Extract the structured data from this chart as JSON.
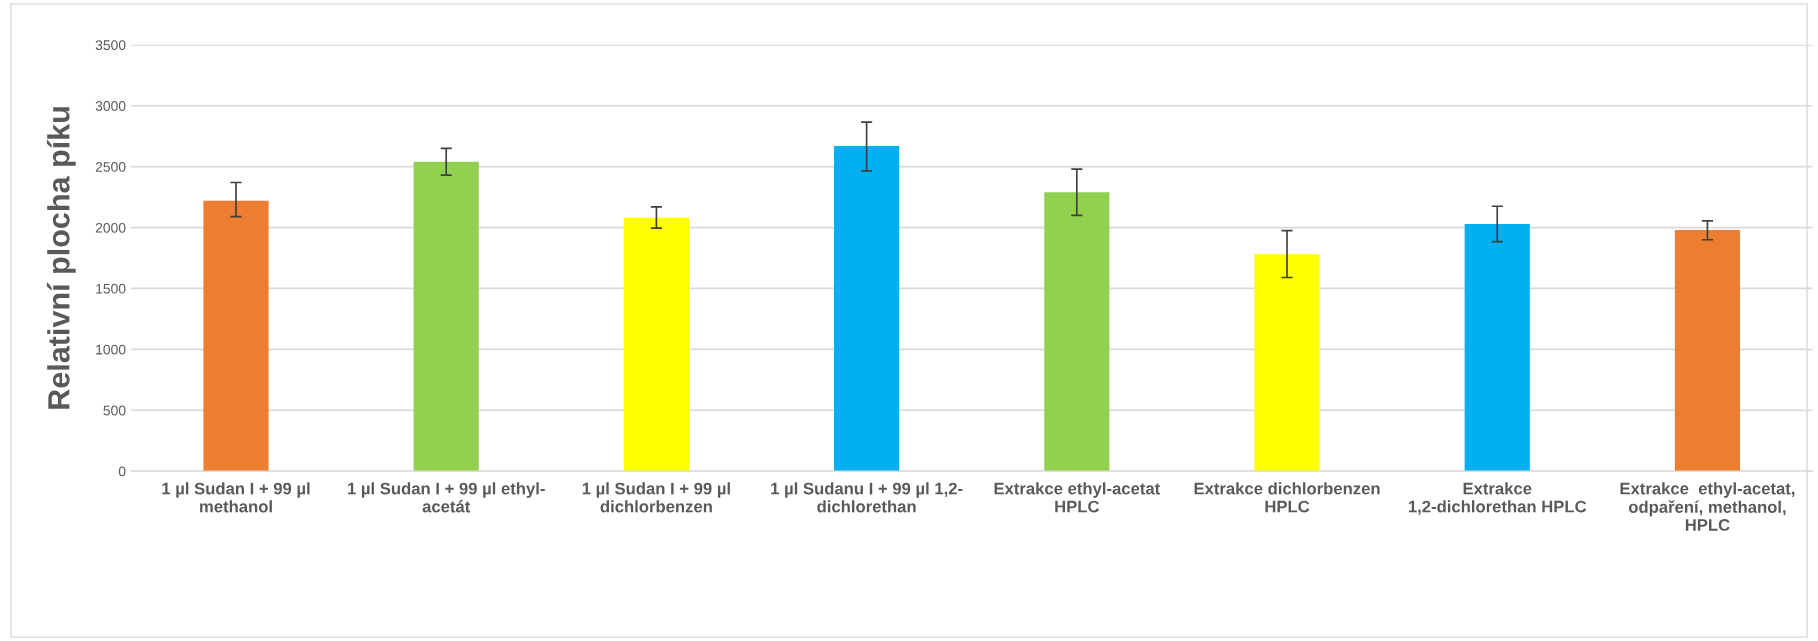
{
  "chart_data": {
    "type": "bar",
    "ylabel": "Relativní plocha píku",
    "categories": [
      "1 µl Sudan I + 99 µl\nmethanol",
      "1 µl Sudan I + 99 µl ethyl-\nacetát",
      "1 µl Sudan I + 99 µl\ndichlorbenzen",
      "1 µl Sudanu I + 99 µl 1,2-\ndichlorethan",
      "Extrakce ethyl-acetat\nHPLC",
      "Extrakce dichlorbenzen\nHPLC",
      "Extrakce\n1,2-dichlorethan HPLC",
      "Extrakce  ethyl-acetat,\nodpaření, methanol,\nHPLC"
    ],
    "values": [
      2220,
      2540,
      2080,
      2670,
      2290,
      1780,
      2030,
      1980
    ],
    "colors": [
      "#ed7d31",
      "#92d050",
      "#ffff00",
      "#00b0f0",
      "#92d050",
      "#ffff00",
      "#00b0f0",
      "#ed7d31"
    ],
    "errors": [
      [
        2090,
        2370
      ],
      [
        2430,
        2650
      ],
      [
        1995,
        2170
      ],
      [
        2465,
        2865
      ],
      [
        2100,
        2480
      ],
      [
        1590,
        1975
      ],
      [
        1885,
        2175
      ],
      [
        1900,
        2055
      ]
    ],
    "ylim": [
      0,
      3500
    ],
    "yticks": [
      0,
      500,
      1000,
      1500,
      2000,
      2500,
      3000,
      3500
    ],
    "grid": "y",
    "legend": false
  }
}
